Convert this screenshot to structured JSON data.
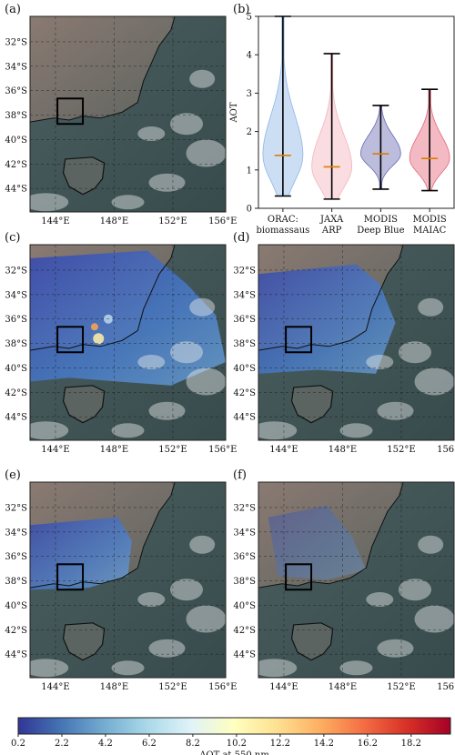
{
  "panel_labels": [
    "(a)",
    "(b)",
    "(c)",
    "(d)",
    "(e)",
    "(f)"
  ],
  "map": {
    "lat_ticks": [
      "32°S",
      "34°S",
      "36°S",
      "38°S",
      "40°S",
      "42°S",
      "44°S"
    ],
    "lon_ticks": [
      "144°E",
      "148°E",
      "152°E",
      "156°E"
    ]
  },
  "colorbar": {
    "ticks": [
      "0.2",
      "2.2",
      "4.2",
      "6.2",
      "8.2",
      "10.2",
      "12.2",
      "14.2",
      "16.2",
      "18.2"
    ],
    "label": "AOT at 550 nm",
    "min": 0.2,
    "max": 20.0
  },
  "chart_data": {
    "type": "violin",
    "ylabel": "AOT",
    "ylim": [
      0,
      5
    ],
    "yticks": [
      "0",
      "1",
      "2",
      "3",
      "4",
      "5"
    ],
    "series": [
      {
        "label_line1": "ORAC:",
        "label_line2": "biomassaus",
        "min": 0.32,
        "max": 5.0,
        "median": 1.38,
        "color": "#8fb5e6"
      },
      {
        "label_line1": "JAXA",
        "label_line2": "ARP",
        "min": 0.24,
        "max": 4.03,
        "median": 1.08,
        "color": "#f3b3bd"
      },
      {
        "label_line1": "MODIS",
        "label_line2": "Deep Blue",
        "min": 0.5,
        "max": 2.68,
        "median": 1.42,
        "color": "#6a6ab4"
      },
      {
        "label_line1": "MODIS",
        "label_line2": "MAIAC",
        "min": 0.46,
        "max": 3.1,
        "median": 1.3,
        "color": "#e5667c"
      }
    ]
  },
  "colors": {
    "land": "#6f6a62",
    "sea": "#3f5455",
    "aot_low": "#3a4fb8",
    "aot_high": "#b01728",
    "median": "#e07b00"
  }
}
